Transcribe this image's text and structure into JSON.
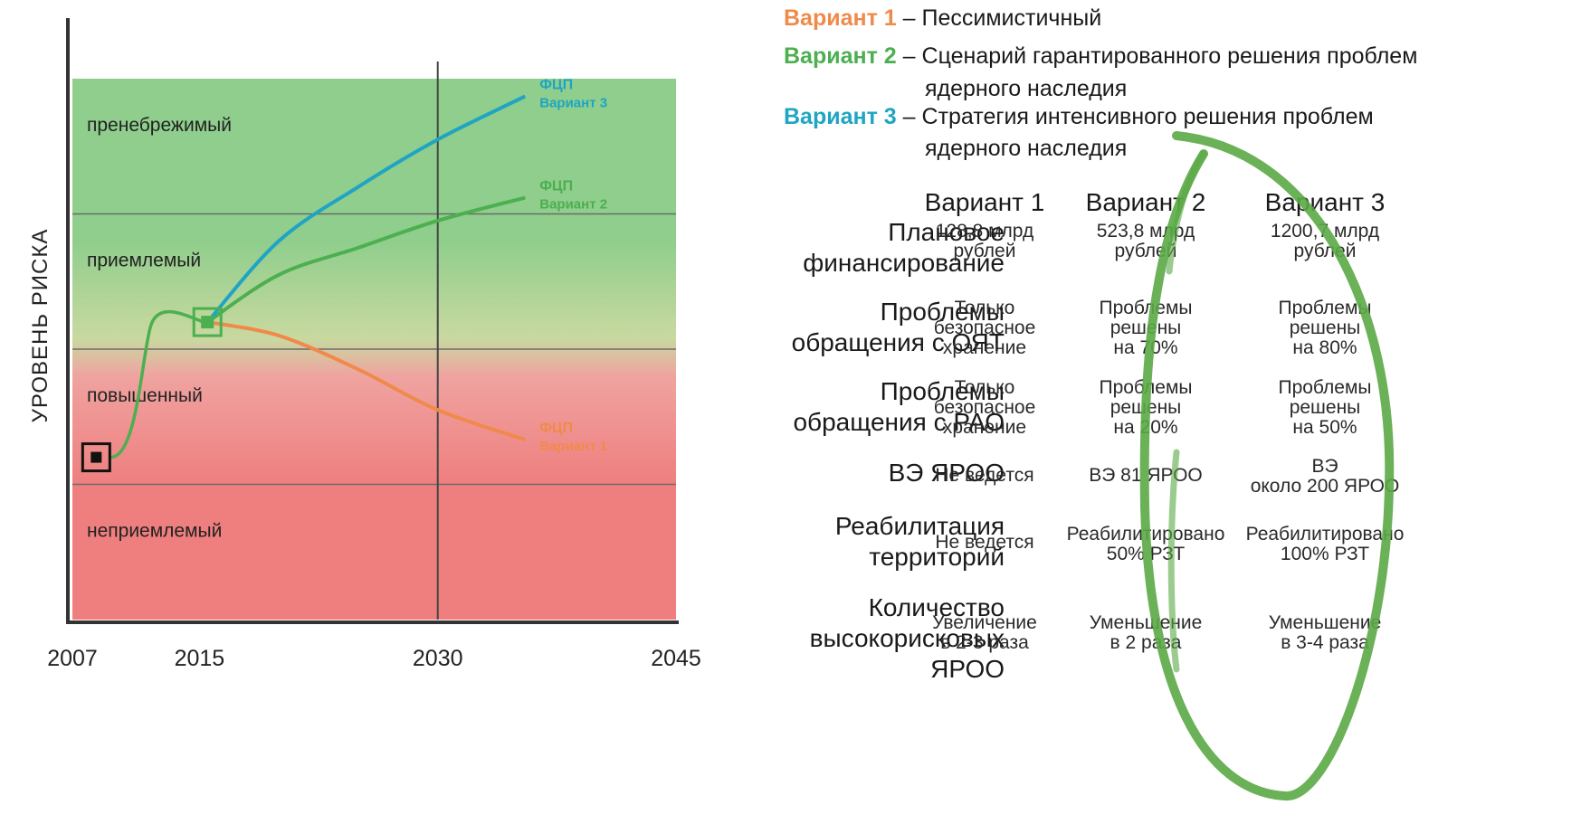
{
  "chart_data": {
    "type": "line",
    "x_ticks": [
      "2007",
      "2015",
      "2030",
      "2045"
    ],
    "ylabel": "УРОВЕНЬ РИСКА",
    "zones": [
      "пренебрежимый",
      "приемлемый",
      "повышенный",
      "неприемлемый"
    ],
    "zone_colors": [
      "#8fce8c",
      "#c9d9a0",
      "#efa3a0",
      "#ef7f7f"
    ],
    "start": {
      "x": 2008.5,
      "y": 1.2
    },
    "branch": {
      "x": 2015.5,
      "y": 2.2
    },
    "series": [
      {
        "name": "Вариант 1",
        "label_top": "ФЦП",
        "label_bottom": "Вариант 1",
        "color": "#f08a4b",
        "points": [
          [
            2015.5,
            2.2
          ],
          [
            2020,
            2.1
          ],
          [
            2025,
            1.85
          ],
          [
            2030,
            1.55
          ],
          [
            2035.5,
            1.33
          ]
        ]
      },
      {
        "name": "Вариант 2",
        "label_top": "ФЦП",
        "label_bottom": "Вариант 2",
        "color": "#4caf50",
        "points": [
          [
            2015.5,
            2.2
          ],
          [
            2020,
            2.55
          ],
          [
            2025,
            2.75
          ],
          [
            2030,
            2.95
          ],
          [
            2035.5,
            3.12
          ]
        ]
      },
      {
        "name": "Вариант 3",
        "label_top": "ФЦП",
        "label_bottom": "Вариант 3",
        "color": "#1fa5c3",
        "points": [
          [
            2015.5,
            2.2
          ],
          [
            2020,
            2.8
          ],
          [
            2025,
            3.2
          ],
          [
            2030,
            3.55
          ],
          [
            2035.5,
            3.87
          ]
        ]
      }
    ]
  },
  "legend": [
    {
      "variant": "Вариант 1",
      "dash": "–",
      "text": "Пессимистичный",
      "continuation": "",
      "color": "#f08a4b"
    },
    {
      "variant": "Вариант 2",
      "dash": "–",
      "text": "Сценарий гарантированного решения проблем",
      "continuation": "ядерного наследия",
      "color": "#4caf50"
    },
    {
      "variant": "Вариант 3",
      "dash": "–",
      "text": "Стратегия интенсивного решения проблем",
      "continuation": "ядерного наследия",
      "color": "#1fa5c3"
    }
  ],
  "table": {
    "columns": [
      "Вариант 1",
      "Вариант  2",
      "Вариант 3"
    ],
    "rows": [
      {
        "label": [
          "Плановое",
          "финансирование"
        ],
        "cells": [
          [
            "128,8 млрд",
            "рублей"
          ],
          [
            "523,8 млрд",
            "рублей"
          ],
          [
            "1200,7 млрд",
            "рублей"
          ]
        ]
      },
      {
        "label": [
          "Проблемы",
          "обращения с ОЯТ"
        ],
        "cells": [
          [
            "Только",
            "безопасное",
            "хранение"
          ],
          [
            "Проблемы",
            "решены",
            "на 70%"
          ],
          [
            "Проблемы",
            "решены",
            "на 80%"
          ]
        ]
      },
      {
        "label": [
          "Проблемы",
          "обращения с РАО"
        ],
        "cells": [
          [
            "Только",
            "безопасное",
            "хранение"
          ],
          [
            "Проблемы",
            "решены",
            "на 20%"
          ],
          [
            "Проблемы",
            "решены",
            "на 50%"
          ]
        ]
      },
      {
        "label": [
          "ВЭ ЯРОО"
        ],
        "cells": [
          [
            "Не ведется"
          ],
          [
            "ВЭ 81 ЯРОО"
          ],
          [
            "ВЭ",
            "около 200 ЯРОО"
          ]
        ]
      },
      {
        "label": [
          "Реабилитация",
          "территорий"
        ],
        "cells": [
          [
            "Не ведется"
          ],
          [
            "Реабилитировано",
            "50% РЗТ"
          ],
          [
            "Реабилитировано",
            "100% РЗТ"
          ]
        ]
      },
      {
        "label": [
          "Количество",
          "высокорисковых",
          "ЯРОО"
        ],
        "cells": [
          [
            "Увеличение",
            "в 2-3 раза"
          ],
          [
            "Уменьшение",
            "в 2 раза"
          ],
          [
            "Уменьшение",
            "в 3-4 раза"
          ]
        ]
      }
    ]
  }
}
